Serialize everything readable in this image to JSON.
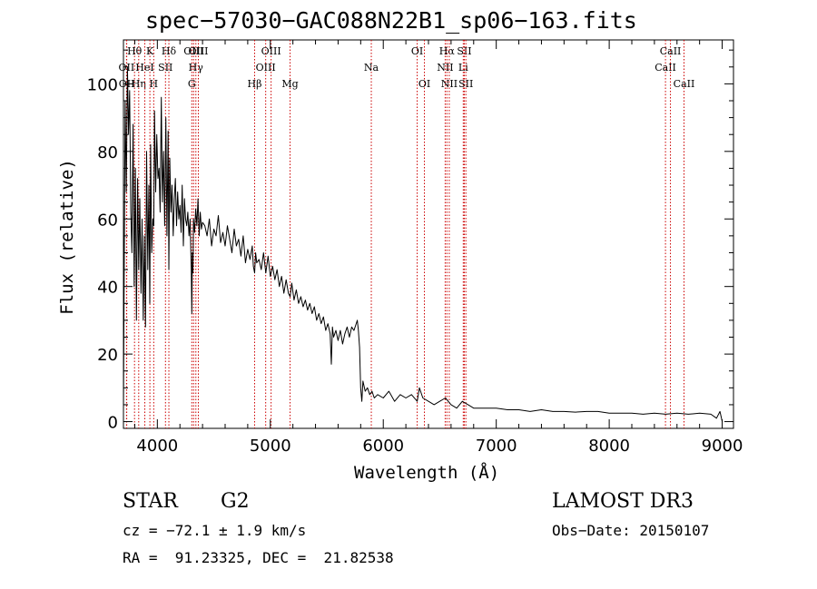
{
  "chart_data": {
    "type": "line",
    "title": "spec−57030−GAC088N22B1_sp06−163.fits",
    "xlabel": "Wavelength (Å)",
    "ylabel": "Flux (relative)",
    "xlim": [
      3700,
      9100
    ],
    "ylim": [
      -2,
      113
    ],
    "xticks": [
      4000,
      5000,
      6000,
      7000,
      8000,
      9000
    ],
    "xtick_labels": [
      "4000",
      "5000",
      "6000",
      "7000",
      "8000",
      "9000"
    ],
    "yticks": [
      0,
      20,
      40,
      60,
      80,
      100
    ],
    "ytick_labels": [
      "0",
      "20",
      "40",
      "60",
      "80",
      "100"
    ],
    "series": [
      {
        "name": "flux",
        "x": [
          3700,
          3705,
          3715,
          3725,
          3735,
          3745,
          3755,
          3765,
          3775,
          3785,
          3795,
          3805,
          3815,
          3825,
          3835,
          3845,
          3855,
          3865,
          3875,
          3885,
          3895,
          3905,
          3915,
          3925,
          3933,
          3940,
          3950,
          3960,
          3968,
          3975,
          3985,
          3995,
          4005,
          4015,
          4025,
          4035,
          4045,
          4055,
          4065,
          4075,
          4085,
          4095,
          4102,
          4110,
          4120,
          4130,
          4140,
          4150,
          4160,
          4170,
          4180,
          4190,
          4200,
          4210,
          4220,
          4230,
          4240,
          4250,
          4260,
          4270,
          4280,
          4290,
          4300,
          4305,
          4310,
          4315,
          4320,
          4330,
          4340,
          4350,
          4360,
          4370,
          4380,
          4390,
          4400,
          4420,
          4440,
          4460,
          4480,
          4500,
          4520,
          4540,
          4560,
          4580,
          4600,
          4620,
          4640,
          4660,
          4680,
          4700,
          4720,
          4740,
          4760,
          4780,
          4800,
          4820,
          4840,
          4850,
          4861,
          4870,
          4880,
          4900,
          4920,
          4940,
          4960,
          4980,
          5000,
          5020,
          5040,
          5060,
          5080,
          5100,
          5120,
          5140,
          5160,
          5175,
          5190,
          5210,
          5230,
          5250,
          5270,
          5290,
          5310,
          5330,
          5350,
          5370,
          5390,
          5410,
          5430,
          5450,
          5470,
          5490,
          5510,
          5530,
          5540,
          5550,
          5560,
          5580,
          5600,
          5620,
          5640,
          5660,
          5680,
          5700,
          5720,
          5740,
          5760,
          5770,
          5780,
          5790,
          5800,
          5810,
          5820,
          5840,
          5860,
          5880,
          5900,
          5920,
          5950,
          6000,
          6050,
          6100,
          6150,
          6200,
          6250,
          6300,
          6320,
          6350,
          6400,
          6450,
          6500,
          6550,
          6600,
          6650,
          6700,
          6750,
          6800,
          6900,
          7000,
          7100,
          7200,
          7300,
          7400,
          7500,
          7600,
          7700,
          7800,
          7900,
          8000,
          8100,
          8200,
          8300,
          8400,
          8500,
          8600,
          8700,
          8800,
          8900,
          8950,
          8980,
          9000
        ],
        "values": [
          3,
          35,
          95,
          68,
          105,
          85,
          98,
          62,
          50,
          88,
          40,
          75,
          30,
          72,
          45,
          66,
          38,
          60,
          30,
          55,
          28,
          80,
          45,
          70,
          35,
          82,
          50,
          60,
          58,
          92,
          68,
          85,
          72,
          75,
          62,
          96,
          65,
          80,
          58,
          90,
          55,
          86,
          45,
          78,
          62,
          70,
          55,
          66,
          72,
          58,
          68,
          60,
          64,
          56,
          70,
          52,
          66,
          60,
          58,
          62,
          55,
          60,
          45,
          32,
          50,
          44,
          60,
          56,
          63,
          58,
          66,
          55,
          62,
          57,
          59,
          58,
          55,
          60,
          52,
          57,
          55,
          61,
          53,
          56,
          52,
          58,
          54,
          50,
          57,
          52,
          54,
          49,
          55,
          47,
          51,
          48,
          52,
          46,
          44,
          50,
          47,
          48,
          45,
          50,
          44,
          49,
          43,
          46,
          42,
          45,
          40,
          43,
          38,
          42,
          38,
          37,
          41,
          36,
          39,
          35,
          37,
          34,
          36,
          33,
          35,
          32,
          34,
          30,
          32,
          29,
          31,
          27,
          29,
          26,
          17,
          28,
          25,
          27,
          24,
          27,
          23,
          26,
          28,
          25,
          28,
          27,
          29,
          30,
          27,
          22,
          10,
          6,
          12,
          9,
          10,
          8,
          9,
          7,
          8,
          7,
          9,
          6,
          8,
          7,
          8,
          6,
          10,
          7,
          6,
          5,
          6,
          7,
          5,
          4,
          6,
          5,
          4,
          4,
          4,
          3.5,
          3.5,
          3,
          3.5,
          3,
          3,
          2.8,
          3,
          3,
          2.5,
          2.5,
          2.5,
          2.2,
          2.5,
          2.2,
          2.5,
          2.2,
          2.5,
          2.2,
          1,
          3,
          0
        ]
      }
    ],
    "lines": [
      {
        "label": "OII",
        "x": 3727,
        "row": 1
      },
      {
        "label": "OII",
        "x": 3729,
        "row": 2
      },
      {
        "label": "Hθ",
        "x": 3798,
        "row": 0
      },
      {
        "label": "Hη",
        "x": 3835,
        "row": 2
      },
      {
        "label": "HeI",
        "x": 3889,
        "row": 1
      },
      {
        "label": "K",
        "x": 3934,
        "row": 0
      },
      {
        "label": "H",
        "x": 3968,
        "row": 2
      },
      {
        "label": "SII",
        "x": 4072,
        "row": 1
      },
      {
        "label": "Hδ",
        "x": 4102,
        "row": 0
      },
      {
        "label": "G",
        "x": 4305,
        "row": 2
      },
      {
        "label": "OIII",
        "x": 4321,
        "row": 0
      },
      {
        "label": "Hγ",
        "x": 4341,
        "row": 1
      },
      {
        "label": "OIII",
        "x": 4363,
        "row": 0
      },
      {
        "label": "Hβ",
        "x": 4861,
        "row": 2
      },
      {
        "label": "OIII",
        "x": 4959,
        "row": 1
      },
      {
        "label": "OIII",
        "x": 5007,
        "row": 0
      },
      {
        "label": "Mg",
        "x": 5175,
        "row": 2
      },
      {
        "label": "Na",
        "x": 5894,
        "row": 1
      },
      {
        "label": "OI",
        "x": 6300,
        "row": 0
      },
      {
        "label": "OI",
        "x": 6364,
        "row": 2
      },
      {
        "label": "NII",
        "x": 6548,
        "row": 1
      },
      {
        "label": "Hα",
        "x": 6563,
        "row": 0
      },
      {
        "label": "NII",
        "x": 6584,
        "row": 2
      },
      {
        "label": "Li",
        "x": 6708,
        "row": 1
      },
      {
        "label": "SII",
        "x": 6717,
        "row": 0
      },
      {
        "label": "SII",
        "x": 6731,
        "row": 2
      },
      {
        "label": "CaII",
        "x": 8498,
        "row": 1
      },
      {
        "label": "CaII",
        "x": 8542,
        "row": 0
      },
      {
        "label": "CaII",
        "x": 8662,
        "row": 2
      }
    ],
    "colors": {
      "spectrum": "#000000",
      "line_markers": "#cc0000",
      "axes": "#000000"
    }
  },
  "info": {
    "class_label": "STAR",
    "subclass": "G2",
    "survey": "LAMOST DR3",
    "cz_text": "cz = −72.1 ± 1.9 km/s",
    "obs_date_text": "Obs−Date: 20150107",
    "coords_text": "RA =  91.23325, DEC =  21.82538"
  }
}
